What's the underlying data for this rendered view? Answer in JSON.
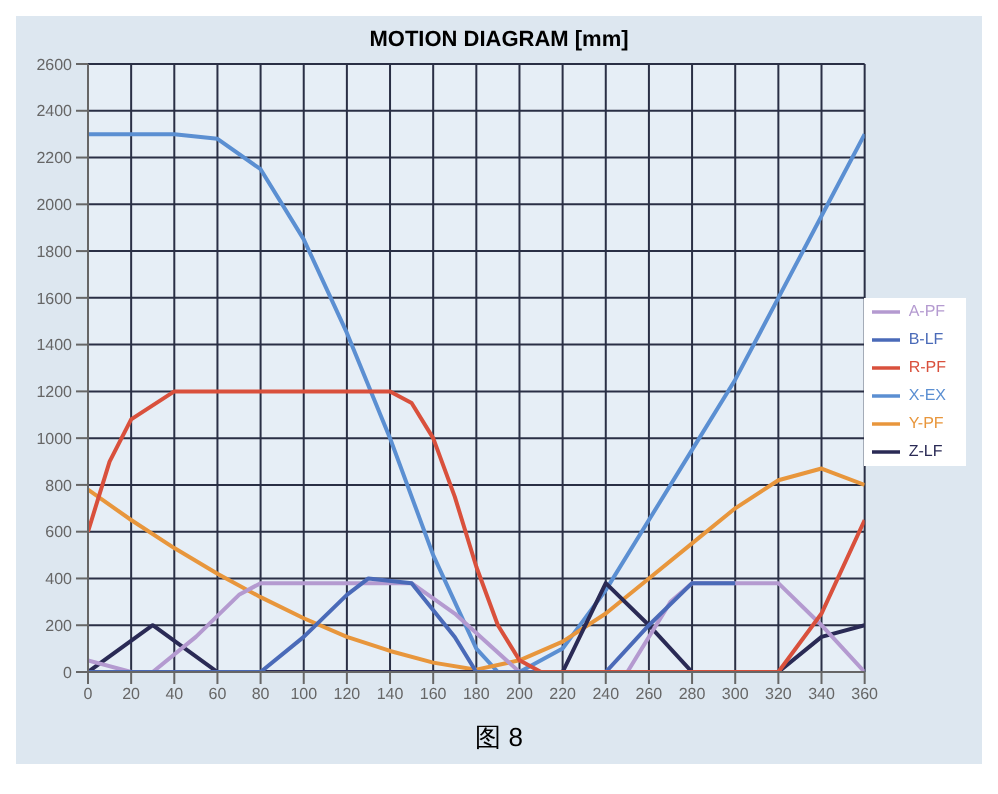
{
  "chart_data": {
    "type": "line",
    "title": "MOTION DIAGRAM [mm]",
    "annotations": [
      "图 8"
    ],
    "xlim": [
      0,
      360
    ],
    "xticks": [
      0,
      20,
      40,
      60,
      80,
      100,
      120,
      140,
      160,
      180,
      200,
      220,
      240,
      260,
      280,
      300,
      320,
      340,
      360
    ],
    "ylim": [
      0,
      2600
    ],
    "yticks": [
      0,
      200,
      400,
      600,
      800,
      1000,
      1200,
      1400,
      1600,
      1800,
      2000,
      2200,
      2400,
      2600
    ],
    "grid": true,
    "legend": "right",
    "marker": "none",
    "line_style": "solid",
    "series": [
      {
        "name": "X-EX",
        "color": "#5b8fd2",
        "x": [
          0,
          40,
          60,
          80,
          100,
          120,
          140,
          160,
          180,
          190,
          200,
          220,
          240,
          260,
          280,
          300,
          320,
          340,
          360
        ],
        "values": [
          2300,
          2300,
          2280,
          2150,
          1850,
          1450,
          1000,
          500,
          100,
          0,
          0,
          100,
          350,
          650,
          950,
          1250,
          1600,
          1950,
          2300
        ]
      },
      {
        "name": "Y-PF",
        "color": "#e8963c",
        "x": [
          0,
          20,
          40,
          60,
          80,
          100,
          120,
          140,
          160,
          180,
          200,
          220,
          240,
          260,
          280,
          300,
          320,
          340,
          360
        ],
        "values": [
          780,
          650,
          530,
          420,
          320,
          230,
          150,
          90,
          40,
          10,
          50,
          130,
          250,
          400,
          550,
          700,
          820,
          870,
          800
        ]
      },
      {
        "name": "Z-LF",
        "color": "#2a2a55",
        "x": [
          0,
          30,
          45,
          60,
          80,
          220,
          240,
          260,
          280,
          320,
          340,
          360
        ],
        "values": [
          0,
          200,
          100,
          0,
          0,
          0,
          380,
          200,
          0,
          0,
          150,
          200
        ]
      },
      {
        "name": "A-PF",
        "color": "#b49ad0",
        "x": [
          0,
          20,
          30,
          50,
          70,
          80,
          150,
          170,
          200,
          250,
          270,
          280,
          320,
          340,
          360
        ],
        "values": [
          50,
          0,
          0,
          150,
          330,
          380,
          380,
          250,
          0,
          0,
          300,
          380,
          380,
          200,
          0
        ]
      },
      {
        "name": "B-LF",
        "color": "#4a6ab8",
        "x": [
          0,
          80,
          100,
          120,
          130,
          150,
          170,
          180,
          240,
          260,
          280,
          300
        ],
        "values": [
          0,
          0,
          150,
          330,
          400,
          380,
          150,
          0,
          0,
          200,
          380,
          380
        ]
      },
      {
        "name": "R-PF",
        "color": "#d9503c",
        "x": [
          0,
          10,
          20,
          40,
          140,
          150,
          160,
          170,
          180,
          190,
          200,
          210,
          320,
          340,
          360
        ],
        "values": [
          600,
          900,
          1080,
          1200,
          1200,
          1150,
          1000,
          750,
          450,
          200,
          50,
          0,
          0,
          250,
          650
        ]
      }
    ]
  }
}
